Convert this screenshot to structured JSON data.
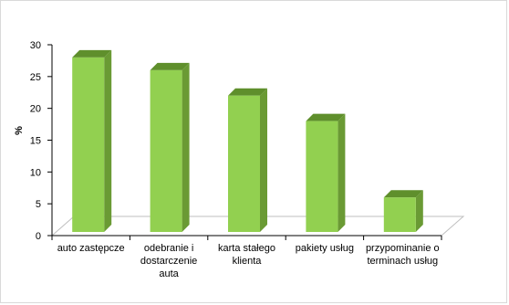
{
  "chart_data": {
    "type": "bar",
    "style": "3d-column",
    "categories": [
      [
        "auto zastępcze"
      ],
      [
        "odebranie i",
        "dostarczenie",
        "auta"
      ],
      [
        "karta stałego",
        "klienta"
      ],
      [
        "pakiety usług"
      ],
      [
        "przypominanie o",
        "terminach usług"
      ]
    ],
    "values": [
      28,
      26,
      22,
      18,
      6
    ],
    "title": "",
    "xlabel": "",
    "ylabel": "%",
    "ylim": [
      0,
      30
    ],
    "yticks": [
      0,
      5,
      10,
      15,
      20,
      25,
      30
    ],
    "grid": false,
    "legend": "none",
    "colors": {
      "bar_front": "#92d050",
      "bar_side": "#6a9a34",
      "bar_top": "#5f8f2c",
      "floor": "#ffffff",
      "floor_edge": "#bfbfbf",
      "axis": "#000000"
    }
  }
}
